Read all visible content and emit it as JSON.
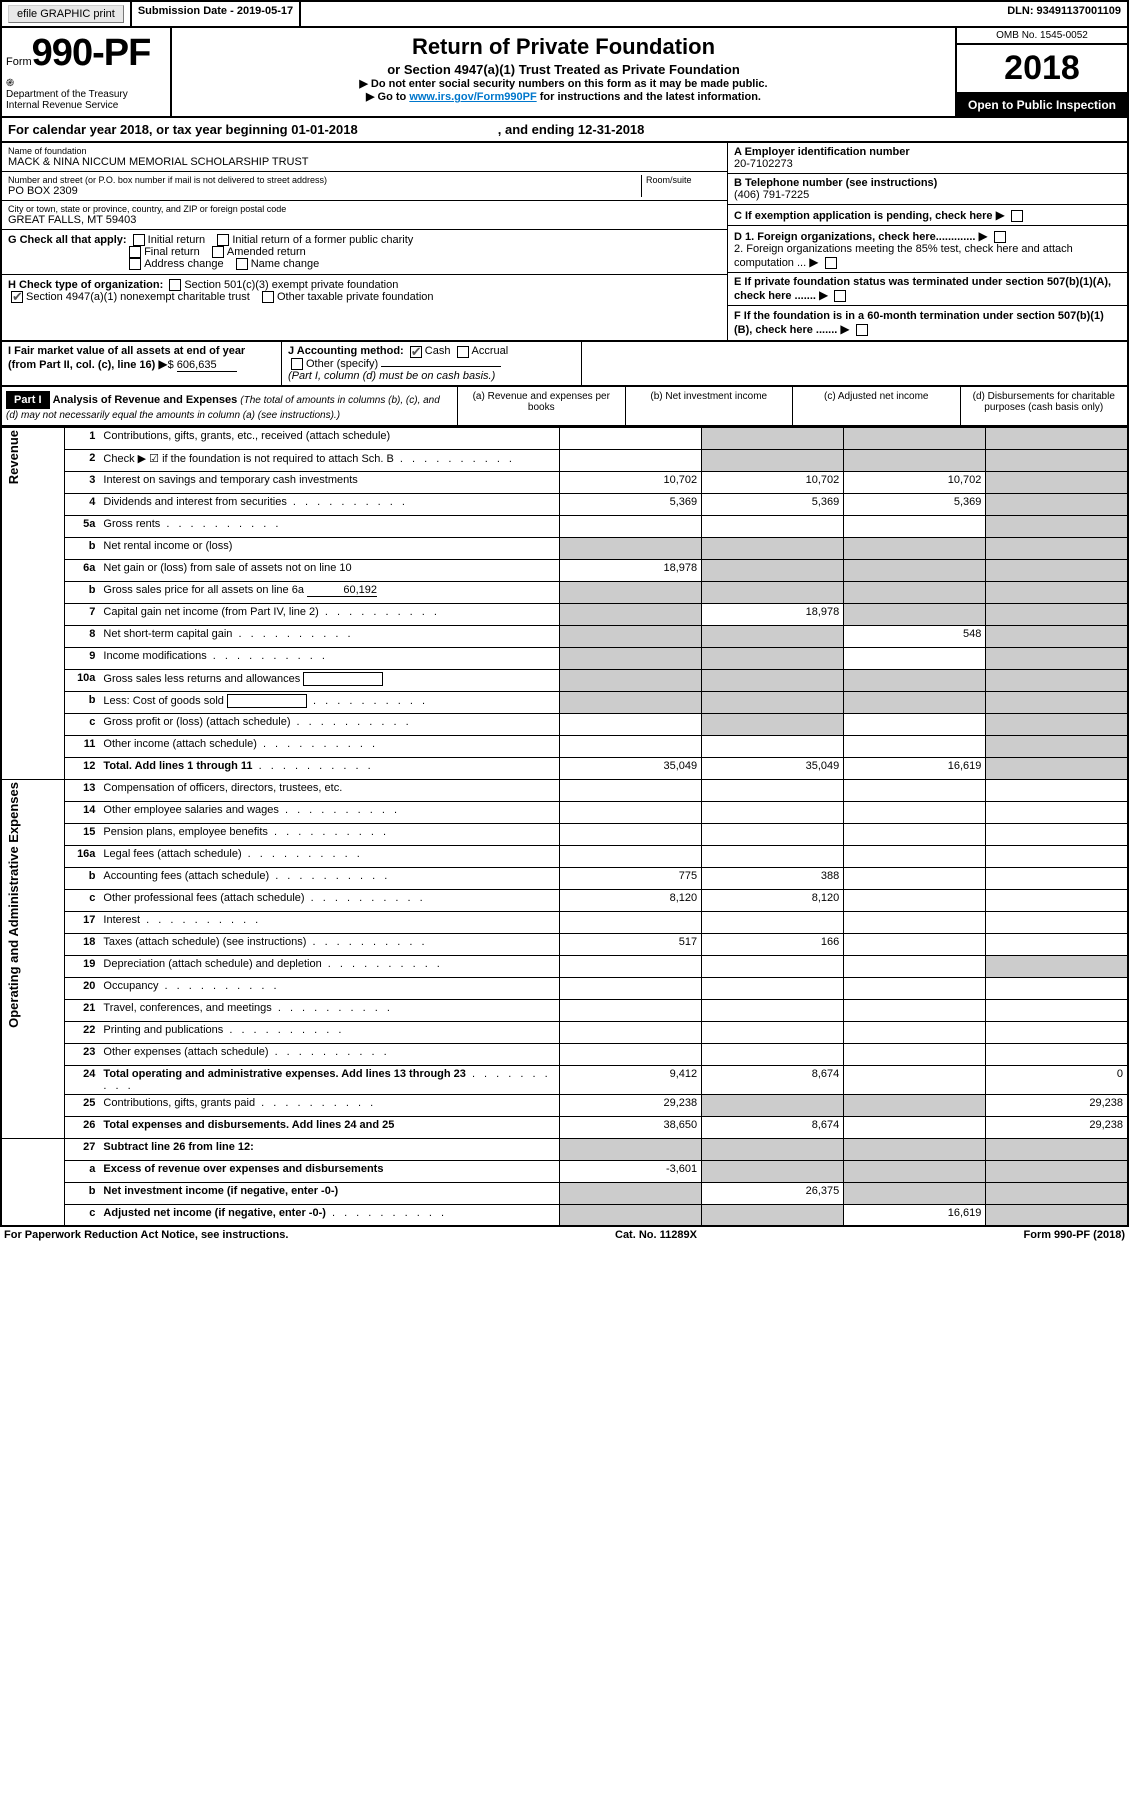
{
  "topbar": {
    "efile": "efile GRAPHIC print",
    "submission_label": "Submission Date - 2019-05-17",
    "dln_label": "DLN: 93491137001109"
  },
  "header": {
    "form_prefix": "Form",
    "form_number": "990-PF",
    "dept": "Department of the Treasury",
    "irs": "Internal Revenue Service",
    "title": "Return of Private Foundation",
    "subtitle": "or Section 4947(a)(1) Trust Treated as Private Foundation",
    "note1": "▶ Do not enter social security numbers on this form as it may be made public.",
    "note2_pre": "▶ Go to ",
    "note2_link": "www.irs.gov/Form990PF",
    "note2_post": " for instructions and the latest information.",
    "omb": "OMB No. 1545-0052",
    "year": "2018",
    "open": "Open to Public Inspection"
  },
  "calyear": {
    "text_a": "For calendar year 2018, or tax year beginning 01-01-2018",
    "text_b": ", and ending 12-31-2018"
  },
  "entity": {
    "name_label": "Name of foundation",
    "name": "MACK & NINA NICCUM MEMORIAL SCHOLARSHIP TRUST",
    "addr_label": "Number and street (or P.O. box number if mail is not delivered to street address)",
    "room_label": "Room/suite",
    "addr": "PO BOX 2309",
    "city_label": "City or town, state or province, country, and ZIP or foreign postal code",
    "city": "GREAT FALLS, MT  59403",
    "ein_label": "A Employer identification number",
    "ein": "20-7102273",
    "tel_label": "B Telephone number (see instructions)",
    "tel": "(406) 791-7225",
    "c_label": "C If exemption application is pending, check here",
    "d1": "D 1. Foreign organizations, check here.............",
    "d2": "2. Foreign organizations meeting the 85% test, check here and attach computation ...",
    "e": "E  If private foundation status was terminated under section 507(b)(1)(A), check here .......",
    "f": "F  If the foundation is in a 60-month termination under section 507(b)(1)(B), check here .......",
    "g_label": "G Check all that apply:",
    "g_opts": [
      "Initial return",
      "Initial return of a former public charity",
      "Final return",
      "Amended return",
      "Address change",
      "Name change"
    ],
    "h_label": "H Check type of organization:",
    "h_opts": [
      "Section 501(c)(3) exempt private foundation",
      "Section 4947(a)(1) nonexempt charitable trust",
      "Other taxable private foundation"
    ],
    "i_label": "I Fair market value of all assets at end of year (from Part II, col. (c), line 16)",
    "i_val": "606,635",
    "j_label": "J Accounting method:",
    "j_cash": "Cash",
    "j_accrual": "Accrual",
    "j_other": "Other (specify)",
    "j_note": "(Part I, column (d) must be on cash basis.)"
  },
  "part1": {
    "part": "Part I",
    "title": "Analysis of Revenue and Expenses",
    "desc": "(The total of amounts in columns (b), (c), and (d) may not necessarily equal the amounts in column (a) (see instructions).)",
    "cols": {
      "a": "(a)   Revenue and expenses per books",
      "b": "(b)  Net investment income",
      "c": "(c)  Adjusted net income",
      "d": "(d)  Disbursements for charitable purposes (cash basis only)"
    }
  },
  "sections": {
    "revenue": "Revenue",
    "expenses": "Operating and Administrative Expenses"
  },
  "rows": [
    {
      "n": "1",
      "d": "Contributions, gifts, grants, etc., received (attach schedule)",
      "a": "",
      "b": "",
      "c": "",
      "ds": "s",
      "cs": "s",
      "bs": "s"
    },
    {
      "n": "2",
      "d": "Check ▶ ☑ if the foundation is not required to attach Sch. B",
      "dots": true,
      "a": "",
      "b": "",
      "c": "",
      "ds": "s",
      "cs": "s",
      "bs": "s"
    },
    {
      "n": "3",
      "d": "Interest on savings and temporary cash investments",
      "a": "10,702",
      "b": "10,702",
      "c": "10,702",
      "ds": "s"
    },
    {
      "n": "4",
      "d": "Dividends and interest from securities",
      "dots": true,
      "a": "5,369",
      "b": "5,369",
      "c": "5,369",
      "ds": "s"
    },
    {
      "n": "5a",
      "d": "Gross rents",
      "dots": true,
      "a": "",
      "b": "",
      "c": "",
      "ds": "s"
    },
    {
      "n": "b",
      "d": "Net rental income or (loss)",
      "a": "",
      "b": "",
      "c": "",
      "as": "s",
      "bs": "s",
      "cs": "s",
      "ds": "s"
    },
    {
      "n": "6a",
      "d": "Net gain or (loss) from sale of assets not on line 10",
      "a": "18,978",
      "b": "",
      "c": "",
      "bs": "s",
      "cs": "s",
      "ds": "s"
    },
    {
      "n": "b",
      "d": "Gross sales price for all assets on line 6a",
      "inline": "60,192",
      "a": "",
      "b": "",
      "c": "",
      "as": "s",
      "bs": "s",
      "cs": "s",
      "ds": "s"
    },
    {
      "n": "7",
      "d": "Capital gain net income (from Part IV, line 2)",
      "dots": true,
      "a": "",
      "b": "18,978",
      "c": "",
      "as": "s",
      "cs": "s",
      "ds": "s"
    },
    {
      "n": "8",
      "d": "Net short-term capital gain",
      "dots": true,
      "a": "",
      "b": "",
      "c": "548",
      "as": "s",
      "bs": "s",
      "ds": "s"
    },
    {
      "n": "9",
      "d": "Income modifications",
      "dots": true,
      "a": "",
      "b": "",
      "c": "",
      "as": "s",
      "bs": "s",
      "ds": "s"
    },
    {
      "n": "10a",
      "d": "Gross sales less returns and allowances",
      "box": true,
      "a": "",
      "b": "",
      "c": "",
      "as": "s",
      "bs": "s",
      "cs": "s",
      "ds": "s"
    },
    {
      "n": "b",
      "d": "Less: Cost of goods sold",
      "dots": true,
      "box": true,
      "a": "",
      "b": "",
      "c": "",
      "as": "s",
      "bs": "s",
      "cs": "s",
      "ds": "s"
    },
    {
      "n": "c",
      "d": "Gross profit or (loss) (attach schedule)",
      "dots": true,
      "a": "",
      "b": "",
      "c": "",
      "bs": "s",
      "ds": "s"
    },
    {
      "n": "11",
      "d": "Other income (attach schedule)",
      "dots": true,
      "a": "",
      "b": "",
      "c": "",
      "ds": "s"
    },
    {
      "n": "12",
      "d": "Total. Add lines 1 through 11",
      "dots": true,
      "bold": true,
      "a": "35,049",
      "b": "35,049",
      "c": "16,619",
      "ds": "s"
    }
  ],
  "exprows": [
    {
      "n": "13",
      "d": "Compensation of officers, directors, trustees, etc.",
      "a": "",
      "b": "",
      "c": "",
      "dd": ""
    },
    {
      "n": "14",
      "d": "Other employee salaries and wages",
      "dots": true,
      "a": "",
      "b": "",
      "c": "",
      "dd": ""
    },
    {
      "n": "15",
      "d": "Pension plans, employee benefits",
      "dots": true,
      "a": "",
      "b": "",
      "c": "",
      "dd": ""
    },
    {
      "n": "16a",
      "d": "Legal fees (attach schedule)",
      "dots": true,
      "a": "",
      "b": "",
      "c": "",
      "dd": ""
    },
    {
      "n": "b",
      "d": "Accounting fees (attach schedule)",
      "dots": true,
      "a": "775",
      "b": "388",
      "c": "",
      "dd": ""
    },
    {
      "n": "c",
      "d": "Other professional fees (attach schedule)",
      "dots": true,
      "a": "8,120",
      "b": "8,120",
      "c": "",
      "dd": ""
    },
    {
      "n": "17",
      "d": "Interest",
      "dots": true,
      "a": "",
      "b": "",
      "c": "",
      "dd": ""
    },
    {
      "n": "18",
      "d": "Taxes (attach schedule) (see instructions)",
      "dots": true,
      "a": "517",
      "b": "166",
      "c": "",
      "dd": ""
    },
    {
      "n": "19",
      "d": "Depreciation (attach schedule) and depletion",
      "dots": true,
      "a": "",
      "b": "",
      "c": "",
      "ds": "s"
    },
    {
      "n": "20",
      "d": "Occupancy",
      "dots": true,
      "a": "",
      "b": "",
      "c": "",
      "dd": ""
    },
    {
      "n": "21",
      "d": "Travel, conferences, and meetings",
      "dots": true,
      "a": "",
      "b": "",
      "c": "",
      "dd": ""
    },
    {
      "n": "22",
      "d": "Printing and publications",
      "dots": true,
      "a": "",
      "b": "",
      "c": "",
      "dd": ""
    },
    {
      "n": "23",
      "d": "Other expenses (attach schedule)",
      "dots": true,
      "a": "",
      "b": "",
      "c": "",
      "dd": ""
    },
    {
      "n": "24",
      "d": "Total operating and administrative expenses. Add lines 13 through 23",
      "dots": true,
      "bold": true,
      "a": "9,412",
      "b": "8,674",
      "c": "",
      "dd": "0"
    },
    {
      "n": "25",
      "d": "Contributions, gifts, grants paid",
      "dots": true,
      "a": "29,238",
      "b": "",
      "c": "",
      "dd": "29,238",
      "bs": "s",
      "cs": "s"
    },
    {
      "n": "26",
      "d": "Total expenses and disbursements. Add lines 24 and 25",
      "bold": true,
      "a": "38,650",
      "b": "8,674",
      "c": "",
      "dd": "29,238"
    }
  ],
  "botrows": [
    {
      "n": "27",
      "d": "Subtract line 26 from line 12:",
      "bold": true,
      "a": "",
      "b": "",
      "c": "",
      "as": "s",
      "bs": "s",
      "cs": "s",
      "ds": "s"
    },
    {
      "n": "a",
      "d": "Excess of revenue over expenses and disbursements",
      "bold": true,
      "a": "-3,601",
      "b": "",
      "c": "",
      "bs": "s",
      "cs": "s",
      "ds": "s"
    },
    {
      "n": "b",
      "d": "Net investment income (if negative, enter -0-)",
      "bold": true,
      "a": "",
      "b": "26,375",
      "c": "",
      "as": "s",
      "cs": "s",
      "ds": "s"
    },
    {
      "n": "c",
      "d": "Adjusted net income (if negative, enter -0-)",
      "dots": true,
      "bold": true,
      "a": "",
      "b": "",
      "c": "16,619",
      "as": "s",
      "bs": "s",
      "ds": "s"
    }
  ],
  "footer": {
    "left": "For Paperwork Reduction Act Notice, see instructions.",
    "mid": "Cat. No. 11289X",
    "right": "Form 990-PF (2018)"
  }
}
